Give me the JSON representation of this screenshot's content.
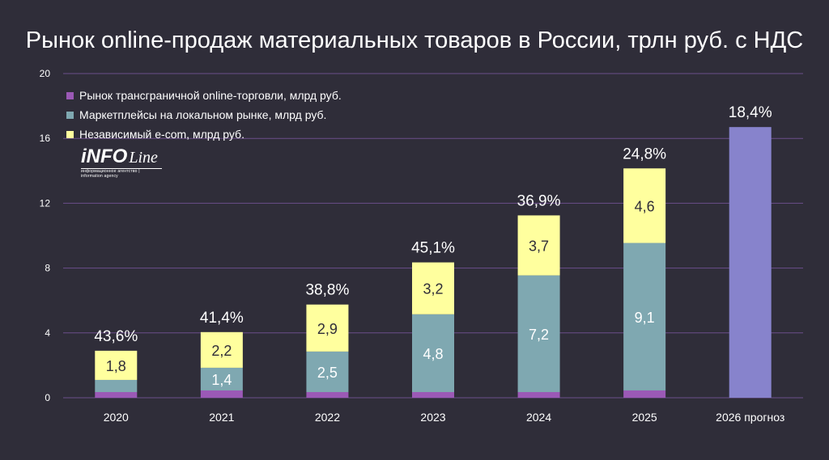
{
  "chart_data": {
    "type": "bar",
    "stacked": true,
    "title": "Рынок online-продаж материальных товаров в России, трлн руб. с НДС",
    "categories": [
      "2020",
      "2021",
      "2022",
      "2023",
      "2024",
      "2025",
      "2026 прогноз"
    ],
    "ylim": [
      0,
      20
    ],
    "yticks": [
      "0",
      "4",
      "8",
      "12",
      "16",
      "20"
    ],
    "grid": true,
    "legend_position": "top-left",
    "series": [
      {
        "name": "Рынок трансграничной online-торговли, млрд руб.",
        "color": "#9b59b6",
        "values": [
          0.35,
          0.45,
          0.35,
          0.35,
          0.35,
          0.45,
          null
        ],
        "labels": [
          "",
          "",
          "",
          "",
          "",
          "",
          ""
        ]
      },
      {
        "name": "Маркетплейсы на локальном рынке, млрд руб.",
        "color": "#7fa8b1",
        "values": [
          0.75,
          1.4,
          2.5,
          4.8,
          7.2,
          9.1,
          null
        ],
        "labels": [
          "",
          "1,4",
          "2,5",
          "4,8",
          "7,2",
          "9,1",
          ""
        ]
      },
      {
        "name": "Независимый e-com, млрд руб.",
        "color": "#ffff9e",
        "values": [
          1.8,
          2.2,
          2.9,
          3.2,
          3.7,
          4.6,
          null
        ],
        "labels": [
          "1,8",
          "2,2",
          "2,9",
          "3,2",
          "3,7",
          "4,6",
          ""
        ]
      },
      {
        "name": "",
        "color": "#8783cc",
        "values": [
          null,
          null,
          null,
          null,
          null,
          null,
          16.7
        ],
        "labels": [
          "",
          "",
          "",
          "",
          "",
          "",
          ""
        ]
      }
    ],
    "growth_labels": [
      "43,6%",
      "41,4%",
      "38,8%",
      "45,1%",
      "36,9%",
      "24,8%",
      "18,4%"
    ]
  },
  "logo": {
    "main": "iNFO",
    "script": "Line",
    "sub": "информационное агентство | information agency"
  },
  "colors": {
    "background": "#2f2d39",
    "grid": "#6b4e8a",
    "text": "#ffffff"
  }
}
